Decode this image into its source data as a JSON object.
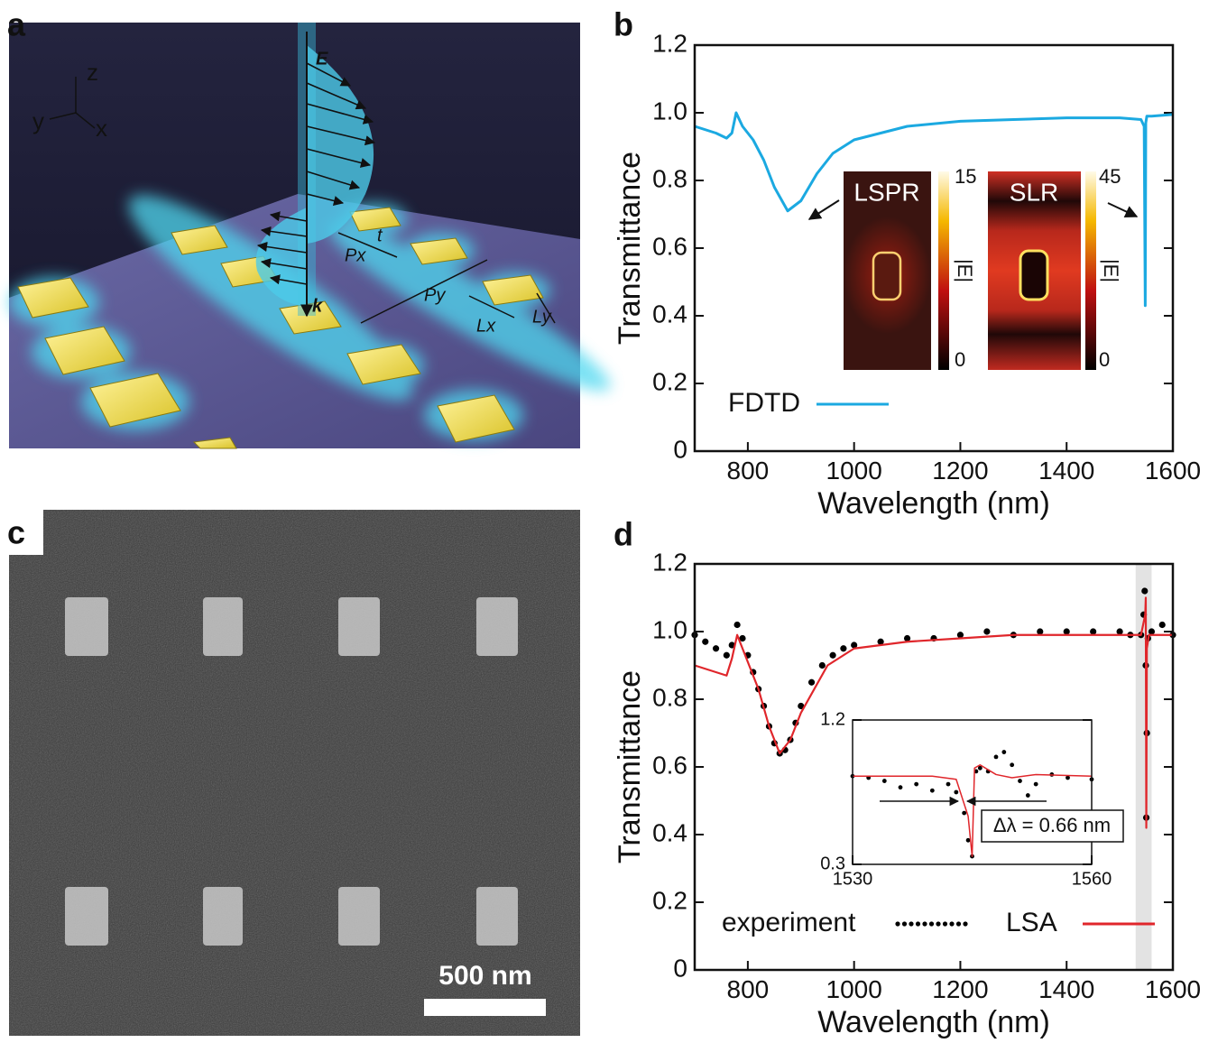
{
  "figure_a": {
    "label": "a",
    "axis_names": [
      "z",
      "y",
      "x"
    ],
    "annotations": [
      "E",
      "k",
      "t",
      "Px",
      "Py",
      "Lx",
      "Ly"
    ]
  },
  "figure_c": {
    "label": "c",
    "scale_bar": "500 nm"
  },
  "chart_data": [
    {
      "type": "line",
      "label": "b",
      "xlabel": "Wavelength (nm)",
      "ylabel": "Transmittance",
      "xlim": [
        700,
        1600
      ],
      "xticks": [
        800,
        1000,
        1200,
        1400,
        1600
      ],
      "ylim": [
        0,
        1.2
      ],
      "yticks": [
        0,
        0.2,
        0.4,
        0.6,
        0.8,
        {
          "value": 1,
          "label": "1.0"
        },
        1.2
      ],
      "x": [
        700,
        740,
        760,
        770,
        778,
        790,
        810,
        830,
        850,
        875,
        900,
        930,
        960,
        1000,
        1100,
        1200,
        1300,
        1400,
        1500,
        1540,
        1546,
        1548,
        1549,
        1551,
        1560,
        1600
      ],
      "series": [
        {
          "name": "FDTD",
          "color": "#1ba9e1",
          "values": [
            0.96,
            0.94,
            0.925,
            0.94,
            1.0,
            0.96,
            0.92,
            0.86,
            0.78,
            0.71,
            0.74,
            0.82,
            0.88,
            0.92,
            0.96,
            0.975,
            0.98,
            0.985,
            0.985,
            0.98,
            0.96,
            0.43,
            0.97,
            0.99,
            0.99,
            0.995
          ]
        }
      ],
      "insets": [
        {
          "label": "LSPR",
          "colorbar_max": 15,
          "colorbar_min": 0,
          "colorbar_label": "|E|"
        },
        {
          "label": "SLR",
          "colorbar_max": 45,
          "colorbar_min": 0,
          "colorbar_label": "|E|"
        }
      ]
    },
    {
      "type": "line",
      "label": "d",
      "xlabel": "Wavelength (nm)",
      "ylabel": "Transmittance",
      "xlim": [
        700,
        1600
      ],
      "xticks": [
        800,
        1000,
        1200,
        1400,
        1600
      ],
      "ylim": [
        0,
        1.2
      ],
      "yticks": [
        0,
        0.2,
        0.4,
        0.6,
        0.8,
        {
          "value": 1,
          "label": "1.0"
        },
        1.2
      ],
      "highlight": [
        1530,
        1560
      ],
      "series": [
        {
          "name": "experiment",
          "color": "#000000",
          "marker": "dots",
          "x": [
            700,
            720,
            740,
            760,
            770,
            780,
            790,
            800,
            810,
            820,
            830,
            840,
            850,
            860,
            870,
            880,
            890,
            900,
            920,
            940,
            960,
            980,
            1000,
            1050,
            1100,
            1150,
            1200,
            1250,
            1300,
            1350,
            1400,
            1450,
            1500,
            1520,
            1540,
            1545,
            1547,
            1549,
            1550,
            1551,
            1553,
            1560,
            1580,
            1600
          ],
          "values": [
            0.99,
            0.97,
            0.95,
            0.93,
            0.96,
            1.02,
            0.98,
            0.93,
            0.88,
            0.83,
            0.78,
            0.72,
            0.67,
            0.64,
            0.65,
            0.68,
            0.73,
            0.78,
            0.85,
            0.9,
            0.93,
            0.95,
            0.96,
            0.97,
            0.98,
            0.98,
            0.99,
            1.0,
            0.99,
            1.0,
            1.0,
            1.0,
            1.0,
            0.99,
            0.99,
            1.05,
            1.12,
            0.9,
            0.45,
            0.7,
            0.98,
            1.0,
            1.02,
            0.99
          ]
        },
        {
          "name": "LSA",
          "color": "#e0262b",
          "marker": "line",
          "x": [
            700,
            740,
            760,
            770,
            780,
            790,
            800,
            820,
            840,
            860,
            880,
            900,
            950,
            1000,
            1100,
            1200,
            1300,
            1400,
            1500,
            1540,
            1548,
            1549,
            1550,
            1551,
            1555,
            1600
          ],
          "values": [
            0.9,
            0.88,
            0.87,
            0.92,
            0.99,
            0.95,
            0.91,
            0.83,
            0.72,
            0.64,
            0.68,
            0.76,
            0.9,
            0.95,
            0.97,
            0.98,
            0.99,
            0.99,
            0.99,
            0.99,
            1.05,
            1.1,
            0.42,
            0.95,
            0.99,
            0.99
          ]
        }
      ]
    },
    {
      "type": "line",
      "xlim": [
        1530,
        1560
      ],
      "xticks": [
        1530,
        1560
      ],
      "ylim": [
        0.3,
        1.2
      ],
      "yticks": [
        0.3,
        1.2
      ],
      "annotation": "Δλ = 0.66 nm",
      "series": [
        {
          "color": "#000000",
          "marker": "dots",
          "x": [
            1530,
            1532,
            1534,
            1536,
            1538,
            1540,
            1542,
            1543,
            1544,
            1544.5,
            1545,
            1545.5,
            1546,
            1547,
            1548,
            1549,
            1550,
            1551,
            1552,
            1553,
            1555,
            1557,
            1560
          ],
          "values": [
            0.85,
            0.84,
            0.82,
            0.78,
            0.8,
            0.76,
            0.8,
            0.75,
            0.62,
            0.45,
            0.35,
            0.88,
            0.9,
            0.88,
            0.97,
            1.0,
            0.92,
            0.82,
            0.73,
            0.8,
            0.86,
            0.84,
            0.83
          ]
        },
        {
          "color": "#e0262b",
          "marker": "line",
          "x": [
            1530,
            1540,
            1543,
            1544.5,
            1545,
            1545.3,
            1546,
            1548,
            1550,
            1553,
            1560
          ],
          "values": [
            0.85,
            0.85,
            0.83,
            0.6,
            0.35,
            0.9,
            0.92,
            0.86,
            0.84,
            0.86,
            0.85
          ]
        }
      ]
    }
  ]
}
